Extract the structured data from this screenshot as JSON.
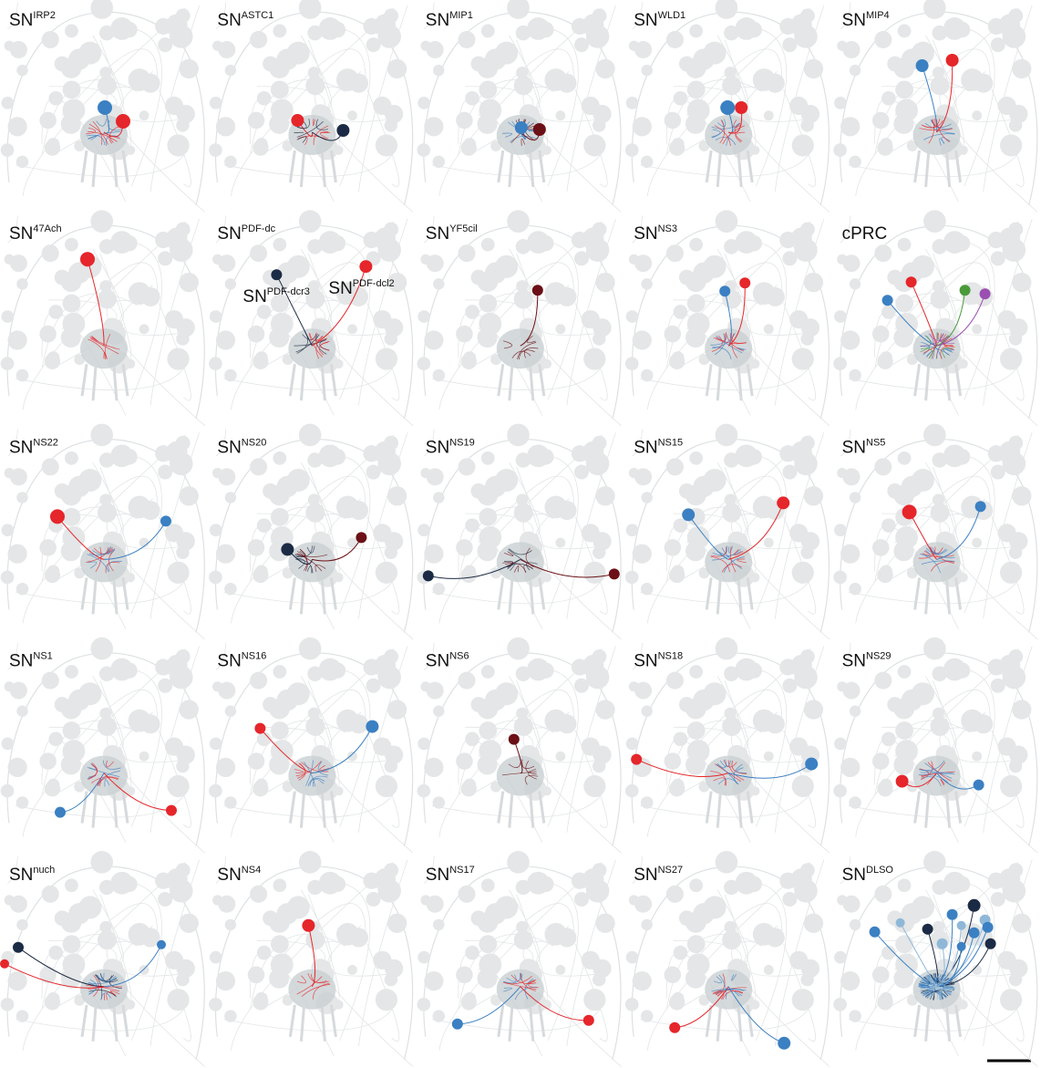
{
  "panels": [
    {
      "label": "SN",
      "superscript": "IRP2"
    },
    {
      "label": "SN",
      "superscript": "ASTC1"
    },
    {
      "label": "SN",
      "superscript": "MIP1"
    },
    {
      "label": "SN",
      "superscript": "WLD1"
    },
    {
      "label": "SN",
      "superscript": "MIP4"
    },
    {
      "label": "SN",
      "superscript": "47Ach"
    },
    {
      "label": "SN",
      "superscript": "PDF-dc",
      "annotations": [
        {
          "label": "SN",
          "superscript": "PDF-dcr3"
        },
        {
          "label": "SN",
          "superscript": "PDF-dcl2"
        }
      ]
    },
    {
      "label": "SN",
      "superscript": "YF5cil"
    },
    {
      "label": "SN",
      "superscript": "NS3"
    },
    {
      "label": "cPRC"
    },
    {
      "label": "SN",
      "superscript": "NS22"
    },
    {
      "label": "SN",
      "superscript": "NS20"
    },
    {
      "label": "SN",
      "superscript": "NS19"
    },
    {
      "label": "SN",
      "superscript": "NS15"
    },
    {
      "label": "SN",
      "superscript": "NS5"
    },
    {
      "label": "SN",
      "superscript": "NS1"
    },
    {
      "label": "SN",
      "superscript": "NS16"
    },
    {
      "label": "SN",
      "superscript": "NS6"
    },
    {
      "label": "SN",
      "superscript": "NS18"
    },
    {
      "label": "SN",
      "superscript": "NS29"
    },
    {
      "label": "SN",
      "superscript": "nuch"
    },
    {
      "label": "SN",
      "superscript": "NS4"
    },
    {
      "label": "SN",
      "superscript": "NS17"
    },
    {
      "label": "SN",
      "superscript": "NS27"
    },
    {
      "label": "SN",
      "superscript": "DLSO"
    }
  ]
}
